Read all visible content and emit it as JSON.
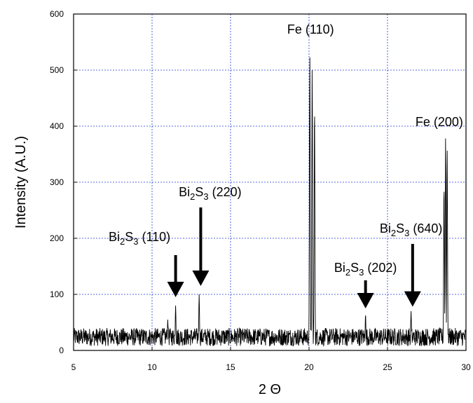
{
  "chart_data": {
    "type": "line",
    "title": "",
    "xlabel": "2 Θ",
    "ylabel": "Intensity (A.U.)",
    "xlim": [
      5,
      30
    ],
    "ylim": [
      0,
      600
    ],
    "xticks": [
      5,
      10,
      15,
      20,
      25,
      30
    ],
    "yticks": [
      0,
      100,
      200,
      300,
      400,
      500,
      600
    ],
    "grid": true,
    "noise_level": [
      8,
      40
    ],
    "peaks": [
      {
        "x": 11.0,
        "y": 55
      },
      {
        "x": 11.5,
        "y": 80
      },
      {
        "x": 13.0,
        "y": 100
      },
      {
        "x": 20.05,
        "y": 528
      },
      {
        "x": 20.2,
        "y": 505
      },
      {
        "x": 20.35,
        "y": 435
      },
      {
        "x": 23.6,
        "y": 65
      },
      {
        "x": 26.5,
        "y": 70
      },
      {
        "x": 28.6,
        "y": 295
      },
      {
        "x": 28.7,
        "y": 382
      },
      {
        "x": 28.8,
        "y": 360
      }
    ],
    "annotations": [
      {
        "id": "fe110",
        "base": "Fe",
        "sub1": "",
        "mid": "",
        "sub2": "",
        "rest": " (110)",
        "x": 20.1,
        "y": 565,
        "arrow": false
      },
      {
        "id": "fe200",
        "base": "Fe",
        "sub1": "",
        "mid": "",
        "sub2": "",
        "rest": " (200)",
        "x": 28.3,
        "y": 400,
        "arrow": false
      },
      {
        "id": "bis110",
        "base": "Bi",
        "sub1": "2",
        "mid": "S",
        "sub2": "3",
        "rest": " (110)",
        "x": 9.2,
        "y": 195,
        "arrow": true,
        "arrow_x": 11.5,
        "arrow_top": 170,
        "arrow_bottom": 95
      },
      {
        "id": "bis220",
        "base": "Bi",
        "sub1": "2",
        "mid": "S",
        "sub2": "3",
        "rest": " (220)",
        "x": 13.7,
        "y": 275,
        "arrow": true,
        "arrow_x": 13.1,
        "arrow_top": 255,
        "arrow_bottom": 115
      },
      {
        "id": "bis202",
        "base": "Bi",
        "sub1": "2",
        "mid": "S",
        "sub2": "3",
        "rest": " (202)",
        "x": 23.6,
        "y": 140,
        "arrow": true,
        "arrow_x": 23.6,
        "arrow_top": 125,
        "arrow_bottom": 75
      },
      {
        "id": "bis640",
        "base": "Bi",
        "sub1": "2",
        "mid": "S",
        "sub2": "3",
        "rest": " (640)",
        "x": 26.5,
        "y": 210,
        "arrow": true,
        "arrow_x": 26.6,
        "arrow_top": 190,
        "arrow_bottom": 78
      }
    ]
  }
}
